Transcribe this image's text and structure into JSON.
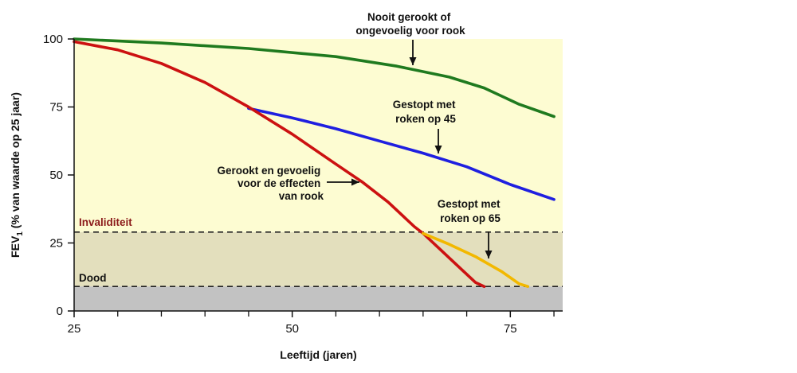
{
  "chart_data": {
    "type": "line",
    "title": "",
    "xlabel": "Leeftijd (jaren)",
    "ylabel_main": "FEV",
    "ylabel_sub": "1",
    "ylabel_rest": " (% van waarde op 25 jaar)",
    "xlim": [
      25,
      81
    ],
    "ylim": [
      0,
      100
    ],
    "xticks": [
      25,
      50,
      75
    ],
    "xticks_minor": [
      30,
      35,
      40,
      45,
      55,
      60,
      65,
      70,
      80
    ],
    "yticks": [
      0,
      25,
      50,
      75,
      100
    ],
    "grid": false,
    "zones": {
      "invaliditeit": {
        "label": "Invaliditeit",
        "y": 29,
        "color": "#8b1a1a"
      },
      "dood": {
        "label": "Dood",
        "y": 9,
        "color": "#111111"
      }
    },
    "series": [
      {
        "key": "never",
        "color": "#1f7a1f",
        "points": [
          [
            25,
            100
          ],
          [
            35,
            98.5
          ],
          [
            45,
            96.5
          ],
          [
            55,
            93.5
          ],
          [
            62,
            90
          ],
          [
            68,
            86
          ],
          [
            72,
            82
          ],
          [
            76,
            76
          ],
          [
            80,
            71.5
          ]
        ]
      },
      {
        "key": "stopped45",
        "color": "#1f1fe0",
        "points": [
          [
            45,
            74.5
          ],
          [
            50,
            71
          ],
          [
            55,
            67
          ],
          [
            60,
            62.5
          ],
          [
            65,
            58
          ],
          [
            70,
            53
          ],
          [
            75,
            46.5
          ],
          [
            80,
            41
          ]
        ]
      },
      {
        "key": "smoker",
        "color": "#cc1111",
        "points": [
          [
            25,
            99
          ],
          [
            30,
            96
          ],
          [
            35,
            91
          ],
          [
            40,
            84
          ],
          [
            45,
            75
          ],
          [
            50,
            65
          ],
          [
            55,
            54
          ],
          [
            58,
            47.5
          ],
          [
            61,
            40
          ],
          [
            64,
            31
          ],
          [
            65,
            28.5
          ],
          [
            67,
            22.5
          ],
          [
            69,
            16.5
          ],
          [
            71,
            10.5
          ],
          [
            72,
            9
          ]
        ]
      },
      {
        "key": "stopped65",
        "color": "#f2b800",
        "points": [
          [
            65,
            28.5
          ],
          [
            68,
            24.5
          ],
          [
            71,
            20
          ],
          [
            74,
            14.5
          ],
          [
            76,
            10
          ],
          [
            77,
            9
          ]
        ]
      }
    ],
    "annotations": [
      {
        "key": "never",
        "lines": [
          "Nooit gerookt of",
          "ongevoelig voor rook"
        ]
      },
      {
        "key": "stopped45",
        "lines": [
          "Gestopt met",
          "roken op 45"
        ]
      },
      {
        "key": "smoker",
        "lines": [
          "Gerookt en gevoelig",
          "voor de effecten",
          "van rook"
        ]
      },
      {
        "key": "stopped65",
        "lines": [
          "Gestopt met",
          "roken op 65"
        ]
      }
    ]
  }
}
